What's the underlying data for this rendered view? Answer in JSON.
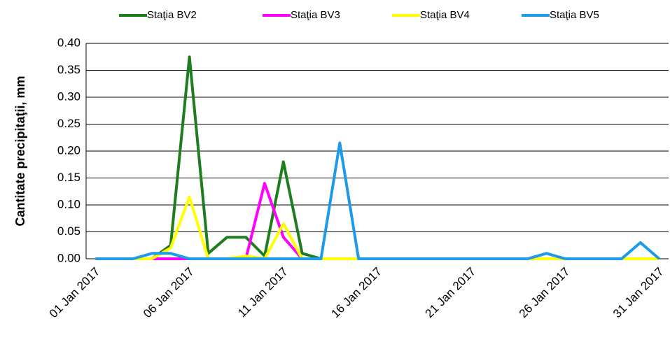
{
  "chart_data": {
    "type": "line",
    "y_label": "Cantitate precipitaţii, mm",
    "categories": [
      "01 Jan 2017",
      null,
      null,
      null,
      null,
      "06 Jan 2017",
      null,
      null,
      null,
      null,
      "11 Jan 2017",
      null,
      null,
      null,
      null,
      "16 Jan 2017",
      null,
      null,
      null,
      null,
      "21 Jan 2017",
      null,
      null,
      null,
      null,
      "26 Jan 2017",
      null,
      null,
      null,
      null,
      "31 Jan 2017"
    ],
    "series": [
      {
        "name": "Staţia BV2",
        "color": "#1e7d1e",
        "values": [
          0,
          0,
          0,
          0,
          0.025,
          0.375,
          0.01,
          0.04,
          0.04,
          0.005,
          0.18,
          0.01,
          0,
          0,
          0,
          0,
          0,
          0,
          0,
          0,
          0,
          0,
          0,
          0,
          0,
          0,
          0,
          0,
          0,
          0,
          0
        ]
      },
      {
        "name": "Staţia BV3",
        "color": "#ff00ff",
        "values": [
          0,
          0,
          0,
          0,
          0,
          0,
          0,
          0,
          0,
          0.14,
          0.04,
          0,
          0,
          0,
          0,
          0,
          0,
          0,
          0,
          0,
          0,
          0,
          0,
          0,
          0,
          0,
          0,
          0,
          0,
          0,
          0
        ]
      },
      {
        "name": "Staţia BV4",
        "color": "#ffff00",
        "values": [
          0,
          0,
          0,
          0,
          0.02,
          0.115,
          0,
          0,
          0.005,
          0,
          0.065,
          0,
          0,
          0,
          0,
          0,
          0,
          0,
          0,
          0,
          0,
          0,
          0,
          0,
          0,
          0,
          0,
          0,
          0,
          0,
          0
        ]
      },
      {
        "name": "Staţia BV5",
        "color": "#1e9be8",
        "values": [
          0,
          0,
          0,
          0.01,
          0.01,
          0,
          0,
          0,
          0,
          0,
          0,
          0,
          0,
          0.215,
          0,
          0,
          0,
          0,
          0,
          0,
          0,
          0,
          0,
          0,
          0.01,
          0,
          0,
          0,
          0,
          0.03,
          0
        ]
      }
    ],
    "ylim": [
      0,
      0.4
    ],
    "yticks": [
      {
        "value": 0,
        "label": "0.00"
      },
      {
        "value": 0.05,
        "label": "0.05"
      },
      {
        "value": 0.1,
        "label": "0.10"
      },
      {
        "value": 0.15,
        "label": "0.15"
      },
      {
        "value": 0.2,
        "label": "0.20"
      },
      {
        "value": 0.25,
        "label": "0.25"
      },
      {
        "value": 0.3,
        "label": "0.30"
      },
      {
        "value": 0.35,
        "label": "0.35"
      },
      {
        "value": 0.4,
        "label": "0.40"
      }
    ],
    "grid": true,
    "legend": "top"
  }
}
